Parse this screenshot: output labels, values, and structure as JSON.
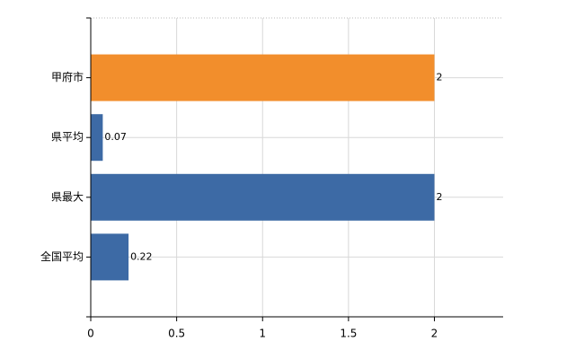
{
  "chart_data": {
    "type": "hbar",
    "categories": [
      "甲府市",
      "県平均",
      "県最大",
      "全国平均"
    ],
    "values": [
      2,
      0.07,
      2,
      0.22
    ],
    "colors": [
      "#f28e2c",
      "#3d6aa5",
      "#3d6aa5",
      "#3d6aa5"
    ],
    "xlim": [
      0,
      2.4
    ],
    "xticks": [
      0,
      0.5,
      1,
      1.5,
      2
    ],
    "grid": true
  }
}
